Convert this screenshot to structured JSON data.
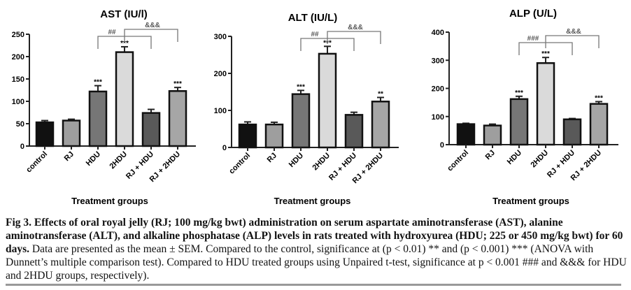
{
  "chart_data": [
    {
      "type": "bar",
      "title": "AST (IU/l)",
      "xlabel": "Treatment groups",
      "ylabel": "",
      "ylim": [
        0,
        250
      ],
      "yticks": [
        0,
        50,
        100,
        150,
        200,
        250
      ],
      "categories": [
        "control",
        "RJ",
        "HDU",
        "2HDU",
        "RJ + HDU",
        "RJ + 2HDU"
      ],
      "values": [
        53,
        57,
        122,
        210,
        74,
        123
      ],
      "errors": [
        4,
        3,
        13,
        12,
        8,
        8
      ],
      "significance": [
        "",
        "",
        "***",
        "***",
        "",
        "***"
      ],
      "brackets": [
        {
          "from": "HDU",
          "to": "RJ + HDU",
          "label": "##"
        },
        {
          "from": "2HDU",
          "to": "RJ + 2HDU",
          "label": "&&&"
        }
      ]
    },
    {
      "type": "bar",
      "title": "ALT (IU/L)",
      "xlabel": "Treatment groups",
      "ylabel": "",
      "ylim": [
        0,
        300
      ],
      "yticks": [
        0,
        100,
        200,
        300
      ],
      "categories": [
        "control",
        "RJ",
        "HDU",
        "2HDU",
        "RJ + HDU",
        "RJ + 2HDU"
      ],
      "values": [
        62,
        62,
        144,
        253,
        88,
        124
      ],
      "errors": [
        7,
        6,
        10,
        20,
        7,
        11
      ],
      "significance": [
        "",
        "",
        "***",
        "***",
        "",
        "**"
      ],
      "brackets": [
        {
          "from": "HDU",
          "to": "RJ + HDU",
          "label": "##"
        },
        {
          "from": "2HDU",
          "to": "RJ + 2HDU",
          "label": "&&&"
        }
      ]
    },
    {
      "type": "bar",
      "title": "ALP (U/L)",
      "xlabel": "Treatment groups",
      "ylabel": "",
      "ylim": [
        0,
        400
      ],
      "yticks": [
        0,
        100,
        200,
        300,
        400
      ],
      "categories": [
        "control",
        "RJ",
        "HDU",
        "2HDU",
        "RJ + HDU",
        "RJ + 2HDU"
      ],
      "values": [
        73,
        68,
        162,
        290,
        90,
        145
      ],
      "errors": [
        3,
        5,
        10,
        20,
        3,
        8
      ],
      "significance": [
        "",
        "",
        "***",
        "***",
        "",
        "***"
      ],
      "brackets": [
        {
          "from": "HDU",
          "to": "RJ + HDU",
          "label": "###"
        },
        {
          "from": "2HDU",
          "to": "RJ + 2HDU",
          "label": "&&&"
        }
      ]
    }
  ],
  "bar_colors": [
    "#111111",
    "#9e9e9e",
    "#767676",
    "#dadada",
    "#595959",
    "#a6a6a6"
  ],
  "caption": {
    "label": "Fig 3.",
    "title": "Effects of oral royal jelly (RJ; 100 mg/kg bwt) administration on serum aspartate aminotransferase (AST), alanine aminotransferase (ALT), and alkaline phosphatase (ALP) levels in rats treated with hydroxyurea (HDU; 225 or 450 mg/kg bwt) for 60 days.",
    "body": "Data are presented as the mean ± SEM. Compared to the control, significance at (p < 0.01) ** and (p < 0.001) *** (ANOVA with Dunnett’s multiple comparison test). Compared to HDU treated groups using Unpaired t-test, significance at p < 0.001 ### and &&& for HDU and 2HDU groups, respectively)."
  }
}
